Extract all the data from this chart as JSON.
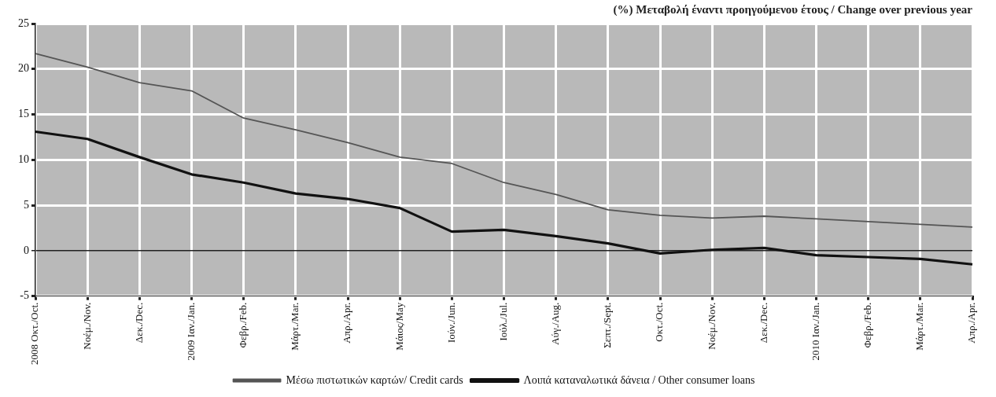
{
  "chart_data": {
    "type": "line",
    "title": "(%) Μεταβολή έναντι προηγούμενου έτους / Change over previous year",
    "categories": [
      "2008 Οκτ./Oct.",
      "Νοέμ./Nov.",
      "Δεκ./Dec.",
      "2009 Ιαν./Jan.",
      "Φεβρ./Feb.",
      "Μάρτ./Mar.",
      "Απρ./Apr.",
      "Μάιος/May",
      "Ιούν./Jun.",
      "Ιούλ./Jul.",
      "Αύγ./Aug.",
      "Σεπτ./Sept.",
      "Οκτ./Oct.",
      "Νοέμ./Nov.",
      "Δεκ./Dec.",
      "2010 Ιαν./Jan.",
      "Φεβρ./Feb.",
      "Μάρτ./Mar.",
      "Απρ./Apr."
    ],
    "series": [
      {
        "name": "Μέσω πιστωτικών καρτών/ Credit cards",
        "color": "#555555",
        "values": [
          21.7,
          20.2,
          18.5,
          17.6,
          14.6,
          13.3,
          11.9,
          10.3,
          9.6,
          7.5,
          6.2,
          4.5,
          3.9,
          3.6,
          3.8,
          3.5,
          3.2,
          2.9,
          2.6
        ]
      },
      {
        "name": "Λοιπά καταναλωτικά δάνεια / Other consumer loans",
        "color": "#111111",
        "values": [
          13.1,
          12.3,
          10.3,
          8.4,
          7.5,
          6.3,
          5.7,
          4.7,
          2.1,
          2.3,
          1.6,
          0.8,
          -0.3,
          0.1,
          0.3,
          -0.5,
          -0.7,
          -0.9,
          -1.5
        ]
      }
    ],
    "ylim": [
      -5,
      25
    ],
    "yticks": [
      -5,
      0,
      5,
      10,
      15,
      20,
      25
    ],
    "grid": true,
    "legend": "bottom",
    "marker": "none",
    "line_style": "solid"
  }
}
